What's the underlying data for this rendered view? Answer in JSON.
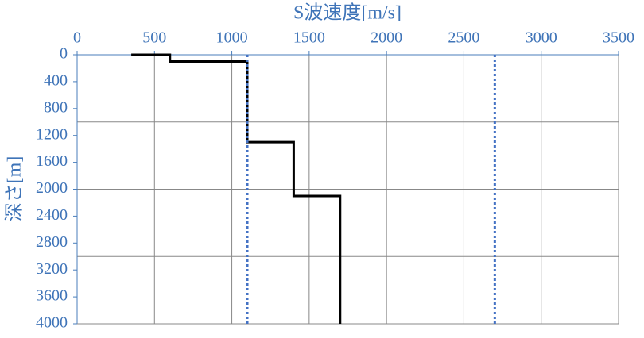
{
  "chart_data": {
    "type": "line",
    "x_label": "S波速度[m/s]",
    "y_label": "深さ[m]",
    "xlim": [
      0,
      3500
    ],
    "xticks": [
      0,
      500,
      1000,
      1500,
      2000,
      2500,
      3000,
      3500
    ],
    "ylim": [
      0,
      4000
    ],
    "yticks": [
      0,
      400,
      800,
      1200,
      1600,
      2000,
      2400,
      2800,
      3200,
      3600,
      4000
    ],
    "y_inverted": true,
    "x_axis_position": "top",
    "xgrid": true,
    "ygrid": [
      1000,
      2000,
      3000
    ],
    "series": [
      {
        "color": "#000000",
        "style": "solid",
        "x": [
          350,
          600,
          600,
          1100,
          1100,
          1400,
          1400,
          1700,
          1700
        ],
        "y": [
          0,
          0,
          100,
          100,
          1300,
          1300,
          2100,
          2100,
          4000
        ]
      },
      {
        "color": "#4472c4",
        "style": "dotted",
        "x": [
          1100,
          1100
        ],
        "y": [
          0,
          4000
        ]
      },
      {
        "color": "#4472c4",
        "style": "dotted",
        "x": [
          2700,
          2700
        ],
        "y": [
          0,
          4000
        ]
      }
    ]
  }
}
